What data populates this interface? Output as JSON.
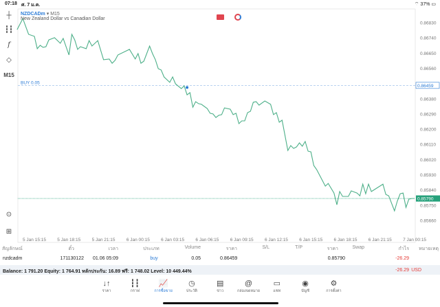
{
  "status": {
    "time": "07:18",
    "date": "ศ. 7 ม.ค.",
    "battery": "37%"
  },
  "chart": {
    "symbol": "NZDCADm",
    "timeframe": "M15",
    "description": "New Zealand Dollar vs Canadian Dollar",
    "buy_label": "BUY 0.05",
    "timeframe_button": "M15"
  },
  "chart_data": {
    "type": "line",
    "line_color": "#4caf88",
    "buy_price": 0.86459,
    "buy_time": "6 Jan 04:30",
    "current_price": 0.8579,
    "ylim": [
      0.8562,
      0.8688
    ],
    "y_ticks": [
      "0.86830",
      "0.86740",
      "0.86650",
      "0.86560",
      "0.86380",
      "0.86290",
      "0.86200",
      "0.86110",
      "0.86020",
      "0.85930",
      "0.85840",
      "0.85750",
      "0.85660"
    ],
    "buy_price_label": "0.86459",
    "current_price_label": "0.85790",
    "x_ticks": [
      "5 Jan 15:15",
      "5 Jan 18:15",
      "5 Jan 21:15",
      "6 Jan 00:15",
      "6 Jan 03:15",
      "6 Jan 06:15",
      "6 Jan 09:15",
      "6 Jan 12:15",
      "6 Jan 15:15",
      "6 Jan 18:15",
      "6 Jan 21:15",
      "7 Jan 00:15"
    ],
    "points": [
      [
        "5 Jan 13:45",
        0.86789
      ],
      [
        "5 Jan 14:15",
        0.86854
      ],
      [
        "5 Jan 14:45",
        0.86761
      ],
      [
        "5 Jan 15:15",
        0.86749
      ],
      [
        "5 Jan 15:30",
        0.86676
      ],
      [
        "5 Jan 15:45",
        0.86696
      ],
      [
        "5 Jan 16:00",
        0.86684
      ],
      [
        "5 Jan 16:15",
        0.86688
      ],
      [
        "5 Jan 16:30",
        0.86728
      ],
      [
        "5 Jan 17:00",
        0.86741
      ],
      [
        "5 Jan 17:30",
        0.86708
      ],
      [
        "5 Jan 17:45",
        0.86737
      ],
      [
        "5 Jan 18:15",
        0.86639
      ],
      [
        "5 Jan 18:30",
        0.86761
      ],
      [
        "5 Jan 18:45",
        0.86728
      ],
      [
        "5 Jan 19:00",
        0.86672
      ],
      [
        "5 Jan 19:15",
        0.86688
      ],
      [
        "5 Jan 19:45",
        0.86676
      ],
      [
        "5 Jan 20:00",
        0.86724
      ],
      [
        "5 Jan 20:15",
        0.86692
      ],
      [
        "5 Jan 20:45",
        0.86724
      ],
      [
        "5 Jan 21:15",
        0.86611
      ],
      [
        "5 Jan 21:45",
        0.86615
      ],
      [
        "5 Jan 22:00",
        0.8659
      ],
      [
        "5 Jan 22:15",
        0.86607
      ],
      [
        "5 Jan 22:30",
        0.86639
      ],
      [
        "5 Jan 23:30",
        0.86672
      ],
      [
        "6 Jan 00:00",
        0.86615
      ],
      [
        "6 Jan 00:15",
        0.86647
      ],
      [
        "6 Jan 00:30",
        0.8659
      ],
      [
        "6 Jan 00:45",
        0.86602
      ],
      [
        "6 Jan 01:15",
        0.86692
      ],
      [
        "6 Jan 01:30",
        0.86647
      ],
      [
        "6 Jan 01:45",
        0.86611
      ],
      [
        "6 Jan 02:00",
        0.86558
      ],
      [
        "6 Jan 02:15",
        0.8655
      ],
      [
        "6 Jan 02:30",
        0.86509
      ],
      [
        "6 Jan 03:00",
        0.86477
      ],
      [
        "6 Jan 03:15",
        0.86509
      ],
      [
        "6 Jan 03:30",
        0.86468
      ],
      [
        "6 Jan 04:00",
        0.8644
      ],
      [
        "6 Jan 04:15",
        0.86456
      ],
      [
        "6 Jan 04:30",
        0.86403
      ],
      [
        "6 Jan 04:45",
        0.86416
      ],
      [
        "6 Jan 05:00",
        0.8633
      ],
      [
        "6 Jan 05:15",
        0.86363
      ],
      [
        "6 Jan 05:30",
        0.86351
      ],
      [
        "6 Jan 05:45",
        0.86347
      ],
      [
        "6 Jan 06:15",
        0.86322
      ],
      [
        "6 Jan 06:30",
        0.86294
      ],
      [
        "6 Jan 06:45",
        0.8629
      ],
      [
        "6 Jan 07:00",
        0.86269
      ],
      [
        "6 Jan 07:15",
        0.86282
      ],
      [
        "6 Jan 07:30",
        0.86286
      ],
      [
        "6 Jan 07:45",
        0.86326
      ],
      [
        "6 Jan 08:15",
        0.86318
      ],
      [
        "6 Jan 08:30",
        0.86286
      ],
      [
        "6 Jan 08:45",
        0.86294
      ],
      [
        "6 Jan 09:00",
        0.86233
      ],
      [
        "6 Jan 09:15",
        0.86249
      ],
      [
        "6 Jan 09:30",
        0.86249
      ],
      [
        "6 Jan 09:45",
        0.86298
      ],
      [
        "6 Jan 10:00",
        0.86306
      ],
      [
        "6 Jan 10:15",
        0.86359
      ],
      [
        "6 Jan 10:30",
        0.86363
      ],
      [
        "6 Jan 10:45",
        0.86342
      ],
      [
        "6 Jan 11:15",
        0.86367
      ],
      [
        "6 Jan 11:45",
        0.86347
      ],
      [
        "6 Jan 12:00",
        0.86286
      ],
      [
        "6 Jan 12:15",
        0.86298
      ],
      [
        "6 Jan 12:30",
        0.86241
      ],
      [
        "6 Jan 12:45",
        0.86253
      ],
      [
        "6 Jan 13:15",
        0.86074
      ],
      [
        "6 Jan 13:30",
        0.86103
      ],
      [
        "6 Jan 13:45",
        0.86086
      ],
      [
        "6 Jan 14:00",
        0.86095
      ],
      [
        "6 Jan 14:15",
        0.86119
      ],
      [
        "6 Jan 14:30",
        0.86099
      ],
      [
        "6 Jan 14:45",
        0.86127
      ],
      [
        "6 Jan 15:00",
        0.8607
      ],
      [
        "6 Jan 15:15",
        0.86066
      ],
      [
        "6 Jan 15:30",
        0.85985
      ],
      [
        "6 Jan 15:45",
        0.85961
      ],
      [
        "6 Jan 16:30",
        0.85863
      ],
      [
        "6 Jan 16:45",
        0.85879
      ],
      [
        "6 Jan 17:15",
        0.85822
      ],
      [
        "6 Jan 17:30",
        0.85753
      ],
      [
        "6 Jan 17:45",
        0.85831
      ],
      [
        "6 Jan 18:00",
        0.85802
      ],
      [
        "6 Jan 18:30",
        0.85802
      ],
      [
        "6 Jan 18:45",
        0.85835
      ],
      [
        "6 Jan 19:15",
        0.85822
      ],
      [
        "6 Jan 19:30",
        0.85806
      ],
      [
        "6 Jan 19:45",
        0.85875
      ],
      [
        "6 Jan 20:00",
        0.85818
      ],
      [
        "6 Jan 20:15",
        0.85875
      ],
      [
        "6 Jan 20:30",
        0.85831
      ],
      [
        "6 Jan 21:30",
        0.85875
      ],
      [
        "6 Jan 21:45",
        0.85814
      ],
      [
        "6 Jan 22:00",
        0.85806
      ],
      [
        "6 Jan 22:30",
        0.85717
      ],
      [
        "6 Jan 22:45",
        0.85774
      ],
      [
        "6 Jan 23:00",
        0.85818
      ],
      [
        "6 Jan 23:15",
        0.85822
      ],
      [
        "6 Jan 23:30",
        0.85737
      ],
      [
        "6 Jan 23:45",
        0.85786
      ],
      [
        "7 Jan 00:00",
        0.8579
      ],
      [
        "7 Jan 00:15",
        0.8579
      ]
    ]
  },
  "table": {
    "headers": [
      "สัญลักษณ์",
      "ตั๋ว",
      "เวลา",
      "ประเภท",
      "Volume",
      "ราคา",
      "S/L",
      "T/P",
      "ราคา",
      "Swap",
      "กำไร",
      "หมายเหตุ"
    ],
    "row": {
      "symbol": "nzdcadm",
      "ticket": "171130122",
      "time": "01.06 05:09",
      "type": "buy",
      "volume": "0.05",
      "open_price": "0.86459",
      "price": "0.85790",
      "profit": "-26.29"
    }
  },
  "balance": {
    "text": "Balance: 1 791.20 Equity: 1 764.91 หลักประกัน: 16.89 ฟรี: 1 748.02 Level: 10 449.44%",
    "profit": "-26.29",
    "currency": "USD"
  },
  "nav": [
    {
      "label": "ราคา",
      "icon": "↓↑",
      "name": "quotes"
    },
    {
      "label": "กราฟ",
      "icon": "┇┇",
      "name": "charts"
    },
    {
      "label": "การซื้อขาย",
      "icon": "📈",
      "name": "trade"
    },
    {
      "label": "ประวัติ",
      "icon": "◷",
      "name": "history"
    },
    {
      "label": "ข่าว",
      "icon": "▤",
      "name": "news"
    },
    {
      "label": "กล่องจดหมาย",
      "icon": "@",
      "name": "mailbox"
    },
    {
      "label": "แชท",
      "icon": "▭",
      "name": "chat"
    },
    {
      "label": "บัญชี",
      "icon": "◉",
      "name": "account"
    },
    {
      "label": "การตั้งค่า",
      "icon": "⚙",
      "name": "settings"
    }
  ],
  "colors": {
    "accent": "#2b7bd6",
    "line": "#4caf88",
    "loss": "#e53935",
    "current": "#26a17b"
  }
}
